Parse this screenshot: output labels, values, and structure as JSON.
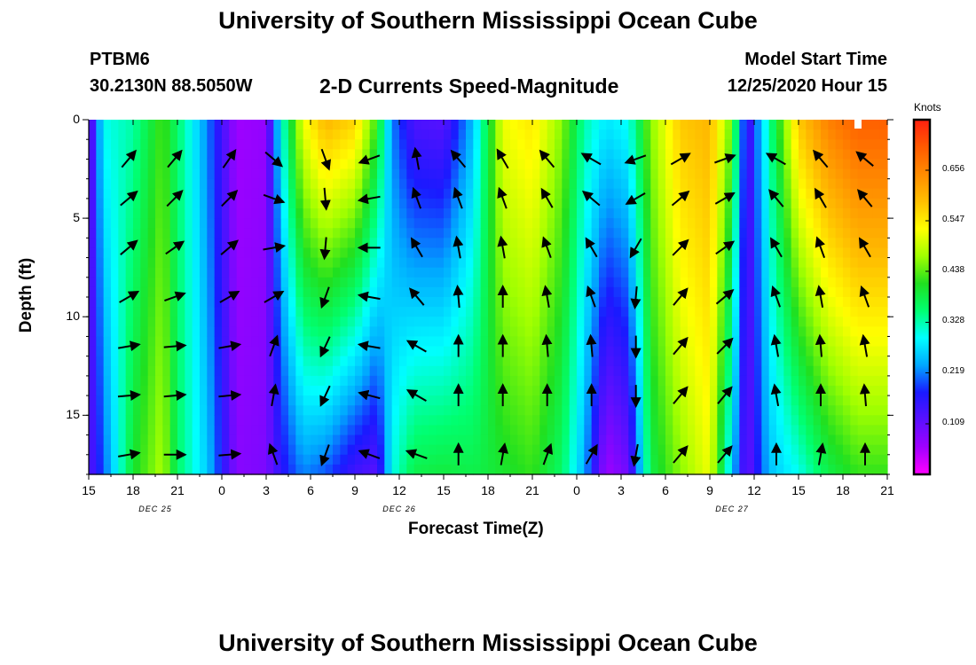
{
  "header": {
    "title_top": "University of Southern Mississippi Ocean Cube",
    "title_bottom": "University of Southern Mississippi Ocean Cube",
    "station_id": "PTBM6",
    "station_coords": "30.2130N 88.5050W",
    "plot_title": "2-D Currents Speed-Magnitude",
    "model_label": "Model Start Time",
    "model_time": "12/25/2020 Hour 15"
  },
  "chart_data": {
    "type": "heatmap",
    "title": "2-D Currents Speed-Magnitude",
    "xlabel": "Forecast Time(Z)",
    "ylabel": "Depth (ft)",
    "x_tick_labels": [
      "15",
      "18",
      "21",
      "0",
      "3",
      "6",
      "9",
      "12",
      "15",
      "18",
      "21",
      "0",
      "3",
      "6",
      "9",
      "12",
      "15",
      "18",
      "21"
    ],
    "x_hours": [
      0,
      3,
      6,
      9,
      12,
      15,
      18,
      21,
      24,
      27,
      30,
      33,
      36,
      39,
      42,
      45,
      48,
      51,
      54
    ],
    "date_labels": [
      {
        "text": "DEC 25",
        "hour": 4.5
      },
      {
        "text": "DEC 26",
        "hour": 21
      },
      {
        "text": "DEC 27",
        "hour": 43.5
      }
    ],
    "y_ticks": [
      0,
      5,
      10,
      15
    ],
    "ylim": [
      0,
      18
    ],
    "xlim": [
      0,
      54
    ],
    "colorbar": {
      "title": "Knots",
      "labels": [
        "0.656",
        "0.547",
        "0.438",
        "0.328",
        "0.219",
        "0.109"
      ],
      "values": [
        0.656,
        0.547,
        0.438,
        0.328,
        0.219,
        0.109
      ],
      "range": [
        0.0,
        0.765
      ],
      "colors": [
        "#ff00ff",
        "#a000ff",
        "#5a10ff",
        "#1a1aff",
        "#00a8ff",
        "#00ffff",
        "#00ff70",
        "#20e020",
        "#a0ff00",
        "#ffff00",
        "#ffc000",
        "#ff8c00",
        "#ff5a00",
        "#ff2010"
      ]
    },
    "speed_profile_knots": [
      {
        "hour": 0,
        "surface": 0.08,
        "bottom": 0.12
      },
      {
        "hour": 1,
        "surface": 0.3,
        "bottom": 0.2
      },
      {
        "hour": 3,
        "surface": 0.33,
        "bottom": 0.4
      },
      {
        "hour": 5,
        "surface": 0.43,
        "bottom": 0.48
      },
      {
        "hour": 6,
        "surface": 0.36,
        "bottom": 0.36
      },
      {
        "hour": 8,
        "surface": 0.22,
        "bottom": 0.26
      },
      {
        "hour": 10,
        "surface": 0.06,
        "bottom": 0.08
      },
      {
        "hour": 12,
        "surface": 0.07,
        "bottom": 0.09
      },
      {
        "hour": 13,
        "surface": 0.3,
        "bottom": 0.16
      },
      {
        "hour": 14.5,
        "surface": 0.52,
        "bottom": 0.22
      },
      {
        "hour": 16,
        "surface": 0.6,
        "bottom": 0.2
      },
      {
        "hour": 18,
        "surface": 0.57,
        "bottom": 0.14
      },
      {
        "hour": 19.5,
        "surface": 0.42,
        "bottom": 0.12
      },
      {
        "hour": 20.5,
        "surface": 0.22,
        "bottom": 0.3
      },
      {
        "hour": 22,
        "surface": 0.13,
        "bottom": 0.38
      },
      {
        "hour": 24,
        "surface": 0.12,
        "bottom": 0.39
      },
      {
        "hour": 26,
        "surface": 0.25,
        "bottom": 0.38
      },
      {
        "hour": 28,
        "surface": 0.52,
        "bottom": 0.4
      },
      {
        "hour": 30,
        "surface": 0.55,
        "bottom": 0.42
      },
      {
        "hour": 32,
        "surface": 0.46,
        "bottom": 0.36
      },
      {
        "hour": 33.5,
        "surface": 0.33,
        "bottom": 0.24
      },
      {
        "hour": 35,
        "surface": 0.28,
        "bottom": 0.06
      },
      {
        "hour": 36.5,
        "surface": 0.3,
        "bottom": 0.1
      },
      {
        "hour": 38,
        "surface": 0.46,
        "bottom": 0.38
      },
      {
        "hour": 40,
        "surface": 0.58,
        "bottom": 0.46
      },
      {
        "hour": 42,
        "surface": 0.6,
        "bottom": 0.52
      },
      {
        "hour": 43.5,
        "surface": 0.44,
        "bottom": 0.26
      },
      {
        "hour": 44.5,
        "surface": 0.12,
        "bottom": 0.1
      },
      {
        "hour": 46,
        "surface": 0.33,
        "bottom": 0.25
      },
      {
        "hour": 48,
        "surface": 0.58,
        "bottom": 0.3
      },
      {
        "hour": 50,
        "surface": 0.66,
        "bottom": 0.38
      },
      {
        "hour": 52,
        "surface": 0.7,
        "bottom": 0.42
      },
      {
        "hour": 54,
        "surface": 0.7,
        "bottom": 0.42
      }
    ],
    "arrow_columns_hours": [
      2.7,
      5.8,
      9.5,
      12.5,
      16,
      19,
      22.2,
      25,
      28,
      31,
      34,
      37,
      40,
      43,
      46.5,
      49.5,
      52.5
    ],
    "arrow_depths_ft": [
      2,
      4,
      6.5,
      9,
      11.5,
      14,
      17
    ],
    "arrow_direction_deg": [
      [
        40,
        50,
        50,
        60,
        80,
        85,
        80
      ],
      [
        40,
        45,
        55,
        70,
        85,
        85,
        90
      ],
      [
        35,
        45,
        50,
        60,
        80,
        85,
        85
      ],
      [
        130,
        110,
        80,
        60,
        20,
        10,
        340
      ],
      [
        160,
        175,
        185,
        200,
        205,
        205,
        200
      ],
      [
        250,
        260,
        270,
        280,
        280,
        285,
        290
      ],
      [
        350,
        340,
        330,
        320,
        300,
        300,
        290
      ],
      [
        320,
        340,
        350,
        355,
        0,
        0,
        0
      ],
      [
        330,
        340,
        350,
        0,
        0,
        0,
        10
      ],
      [
        320,
        330,
        340,
        350,
        355,
        0,
        20
      ],
      [
        300,
        310,
        330,
        340,
        355,
        0,
        30
      ],
      [
        250,
        240,
        210,
        185,
        180,
        180,
        190
      ],
      [
        60,
        50,
        45,
        40,
        40,
        40,
        40
      ],
      [
        70,
        60,
        55,
        50,
        45,
        40,
        40
      ],
      [
        300,
        320,
        330,
        340,
        350,
        350,
        0
      ],
      [
        320,
        330,
        340,
        350,
        355,
        0,
        10
      ],
      [
        310,
        320,
        330,
        340,
        350,
        355,
        0
      ]
    ]
  }
}
